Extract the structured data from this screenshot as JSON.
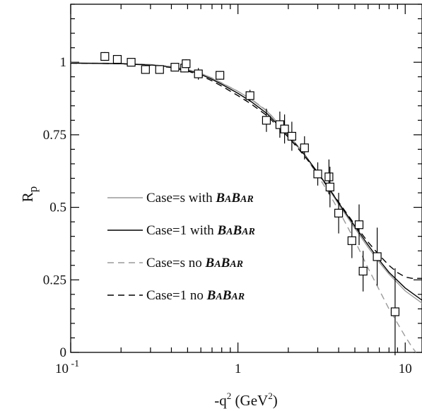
{
  "chart_data": {
    "type": "line",
    "title": "",
    "xlabel": {
      "base": "-q",
      "sup": "2",
      "unit_open": " (GeV",
      "unit_sup": "2",
      "unit_close": ")"
    },
    "ylabel": {
      "base": "R",
      "sub": "p"
    },
    "x_scale": "log",
    "xlim": [
      0.1,
      12.6
    ],
    "ylim": [
      0,
      1.2
    ],
    "x_ticks": [
      {
        "value": 0.1,
        "base": "10",
        "exp": "-1"
      },
      {
        "value": 1,
        "label": "1"
      },
      {
        "value": 10,
        "label": "10"
      }
    ],
    "y_ticks": [
      {
        "value": 0,
        "label": "0"
      },
      {
        "value": 0.25,
        "label": "0.25"
      },
      {
        "value": 0.5,
        "label": "0.5"
      },
      {
        "value": 0.75,
        "label": "0.75"
      },
      {
        "value": 1,
        "label": "1"
      }
    ],
    "legend": {
      "placement": "lower-left",
      "word_babar": "BABAR",
      "babar_big": "B",
      "babar_small": "A",
      "entries": [
        {
          "style": "solid",
          "color": "#9a9a9a",
          "text": "Case=s with "
        },
        {
          "style": "solid",
          "color": "#000000",
          "text": "Case=1 with "
        },
        {
          "style": "dashed",
          "color": "#9a9a9a",
          "text": "Case=s no "
        },
        {
          "style": "dashed",
          "color": "#000000",
          "text": "Case=1 no "
        }
      ]
    },
    "series": [
      {
        "name": "Case=s with BABAR",
        "style": "solid",
        "color": "#9a9a9a",
        "points": [
          [
            0.1,
            0.998
          ],
          [
            0.2,
            0.996
          ],
          [
            0.3,
            0.992
          ],
          [
            0.4,
            0.985
          ],
          [
            0.5,
            0.975
          ],
          [
            0.6,
            0.962
          ],
          [
            0.7,
            0.945
          ],
          [
            0.8,
            0.928
          ],
          [
            1.0,
            0.9
          ],
          [
            1.2,
            0.872
          ],
          [
            1.5,
            0.83
          ],
          [
            2.0,
            0.752
          ],
          [
            2.5,
            0.683
          ],
          [
            3.0,
            0.618
          ],
          [
            3.5,
            0.562
          ],
          [
            4.0,
            0.51
          ],
          [
            5.0,
            0.428
          ],
          [
            6.0,
            0.362
          ],
          [
            7.0,
            0.31
          ],
          [
            8.0,
            0.27
          ],
          [
            10.0,
            0.212
          ],
          [
            12.6,
            0.17
          ]
        ]
      },
      {
        "name": "Case=1 with BABAR",
        "style": "solid",
        "color": "#000000",
        "points": [
          [
            0.1,
            0.997
          ],
          [
            0.2,
            0.995
          ],
          [
            0.3,
            0.991
          ],
          [
            0.4,
            0.984
          ],
          [
            0.5,
            0.973
          ],
          [
            0.6,
            0.958
          ],
          [
            0.7,
            0.941
          ],
          [
            0.8,
            0.924
          ],
          [
            1.0,
            0.893
          ],
          [
            1.2,
            0.864
          ],
          [
            1.5,
            0.822
          ],
          [
            2.0,
            0.748
          ],
          [
            2.5,
            0.681
          ],
          [
            3.0,
            0.62
          ],
          [
            3.5,
            0.566
          ],
          [
            4.0,
            0.515
          ],
          [
            5.0,
            0.435
          ],
          [
            6.0,
            0.37
          ],
          [
            7.0,
            0.318
          ],
          [
            8.0,
            0.276
          ],
          [
            10.0,
            0.222
          ],
          [
            12.6,
            0.18
          ]
        ]
      },
      {
        "name": "Case=s no BABAR",
        "style": "dashed",
        "color": "#9a9a9a",
        "points": [
          [
            0.1,
            0.998
          ],
          [
            0.2,
            0.996
          ],
          [
            0.3,
            0.992
          ],
          [
            0.4,
            0.985
          ],
          [
            0.5,
            0.975
          ],
          [
            0.6,
            0.962
          ],
          [
            0.7,
            0.946
          ],
          [
            0.8,
            0.929
          ],
          [
            1.0,
            0.9
          ],
          [
            1.2,
            0.873
          ],
          [
            1.5,
            0.832
          ],
          [
            2.0,
            0.75
          ],
          [
            2.5,
            0.68
          ],
          [
            3.0,
            0.61
          ],
          [
            3.5,
            0.548
          ],
          [
            4.0,
            0.49
          ],
          [
            5.0,
            0.385
          ],
          [
            6.0,
            0.29
          ],
          [
            7.0,
            0.215
          ],
          [
            8.0,
            0.15
          ],
          [
            9.0,
            0.1
          ],
          [
            10.0,
            0.055
          ],
          [
            11.0,
            0.018
          ],
          [
            11.6,
            0.0
          ]
        ]
      },
      {
        "name": "Case=1 no BABAR",
        "style": "dashed",
        "color": "#000000",
        "points": [
          [
            0.1,
            0.997
          ],
          [
            0.2,
            0.995
          ],
          [
            0.3,
            0.99
          ],
          [
            0.4,
            0.982
          ],
          [
            0.5,
            0.97
          ],
          [
            0.6,
            0.954
          ],
          [
            0.7,
            0.936
          ],
          [
            0.8,
            0.918
          ],
          [
            1.0,
            0.885
          ],
          [
            1.2,
            0.856
          ],
          [
            1.5,
            0.815
          ],
          [
            2.0,
            0.742
          ],
          [
            2.5,
            0.677
          ],
          [
            3.0,
            0.617
          ],
          [
            3.5,
            0.565
          ],
          [
            4.0,
            0.518
          ],
          [
            5.0,
            0.44
          ],
          [
            6.0,
            0.38
          ],
          [
            7.0,
            0.335
          ],
          [
            8.0,
            0.3
          ],
          [
            9.0,
            0.275
          ],
          [
            10.0,
            0.26
          ],
          [
            11.0,
            0.255
          ],
          [
            12.6,
            0.255
          ]
        ]
      }
    ],
    "data_points": [
      {
        "x": 0.16,
        "y": 1.02,
        "err": 0.015
      },
      {
        "x": 0.19,
        "y": 1.01,
        "err": 0.012
      },
      {
        "x": 0.23,
        "y": 1.0,
        "err": 0.012
      },
      {
        "x": 0.28,
        "y": 0.975,
        "err": 0.01
      },
      {
        "x": 0.34,
        "y": 0.975,
        "err": 0.01
      },
      {
        "x": 0.42,
        "y": 0.983,
        "err": 0.012
      },
      {
        "x": 0.48,
        "y": 0.98,
        "err": 0.015
      },
      {
        "x": 0.49,
        "y": 0.995,
        "err": 0.015
      },
      {
        "x": 0.58,
        "y": 0.96,
        "err": 0.02
      },
      {
        "x": 0.78,
        "y": 0.955,
        "err": 0.015
      },
      {
        "x": 1.18,
        "y": 0.885,
        "err": 0.02
      },
      {
        "x": 1.48,
        "y": 0.8,
        "err": 0.04
      },
      {
        "x": 1.78,
        "y": 0.785,
        "err": 0.045
      },
      {
        "x": 1.9,
        "y": 0.77,
        "err": 0.05
      },
      {
        "x": 2.1,
        "y": 0.745,
        "err": 0.05
      },
      {
        "x": 2.5,
        "y": 0.705,
        "err": 0.04
      },
      {
        "x": 3.0,
        "y": 0.615,
        "err": 0.04
      },
      {
        "x": 3.5,
        "y": 0.605,
        "err": 0.06
      },
      {
        "x": 3.55,
        "y": 0.57,
        "err": 0.07
      },
      {
        "x": 4.0,
        "y": 0.48,
        "err": 0.07
      },
      {
        "x": 4.8,
        "y": 0.385,
        "err": 0.06
      },
      {
        "x": 5.3,
        "y": 0.44,
        "err": 0.07
      },
      {
        "x": 5.6,
        "y": 0.28,
        "err": 0.07
      },
      {
        "x": 6.8,
        "y": 0.33,
        "err": 0.1
      },
      {
        "x": 8.7,
        "y": 0.14,
        "err": 0.15
      }
    ]
  }
}
